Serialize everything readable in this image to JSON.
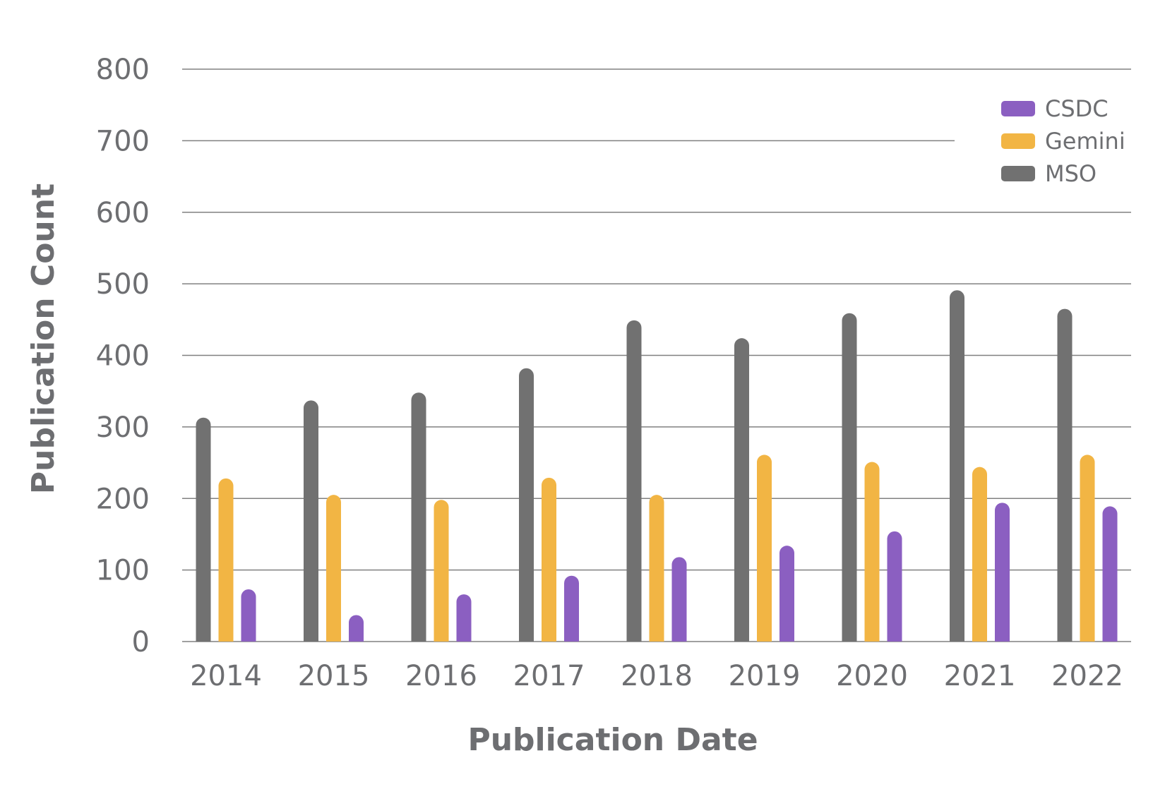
{
  "chart_data": {
    "type": "bar",
    "title": "",
    "xlabel": "Publication Date",
    "ylabel": "Publication Count",
    "categories": [
      "2014",
      "2015",
      "2016",
      "2017",
      "2018",
      "2019",
      "2020",
      "2021",
      "2022"
    ],
    "ylim": [
      0,
      800
    ],
    "yticks": [
      "0",
      "100",
      "200",
      "300",
      "400",
      "500",
      "600",
      "700",
      "800"
    ],
    "grid": true,
    "legend_position": "top-right",
    "series": [
      {
        "name": "MSO",
        "color": "#717171",
        "values": [
          313,
          337,
          348,
          382,
          449,
          424,
          459,
          491,
          465
        ]
      },
      {
        "name": "Gemini",
        "color": "#f2b544",
        "values": [
          228,
          205,
          198,
          229,
          205,
          261,
          251,
          244,
          261
        ]
      },
      {
        "name": "CSDC",
        "color": "#8b5fc1",
        "values": [
          73,
          37,
          66,
          92,
          118,
          134,
          154,
          194,
          189
        ]
      }
    ],
    "legend_order": [
      "CSDC",
      "Gemini",
      "MSO"
    ]
  }
}
